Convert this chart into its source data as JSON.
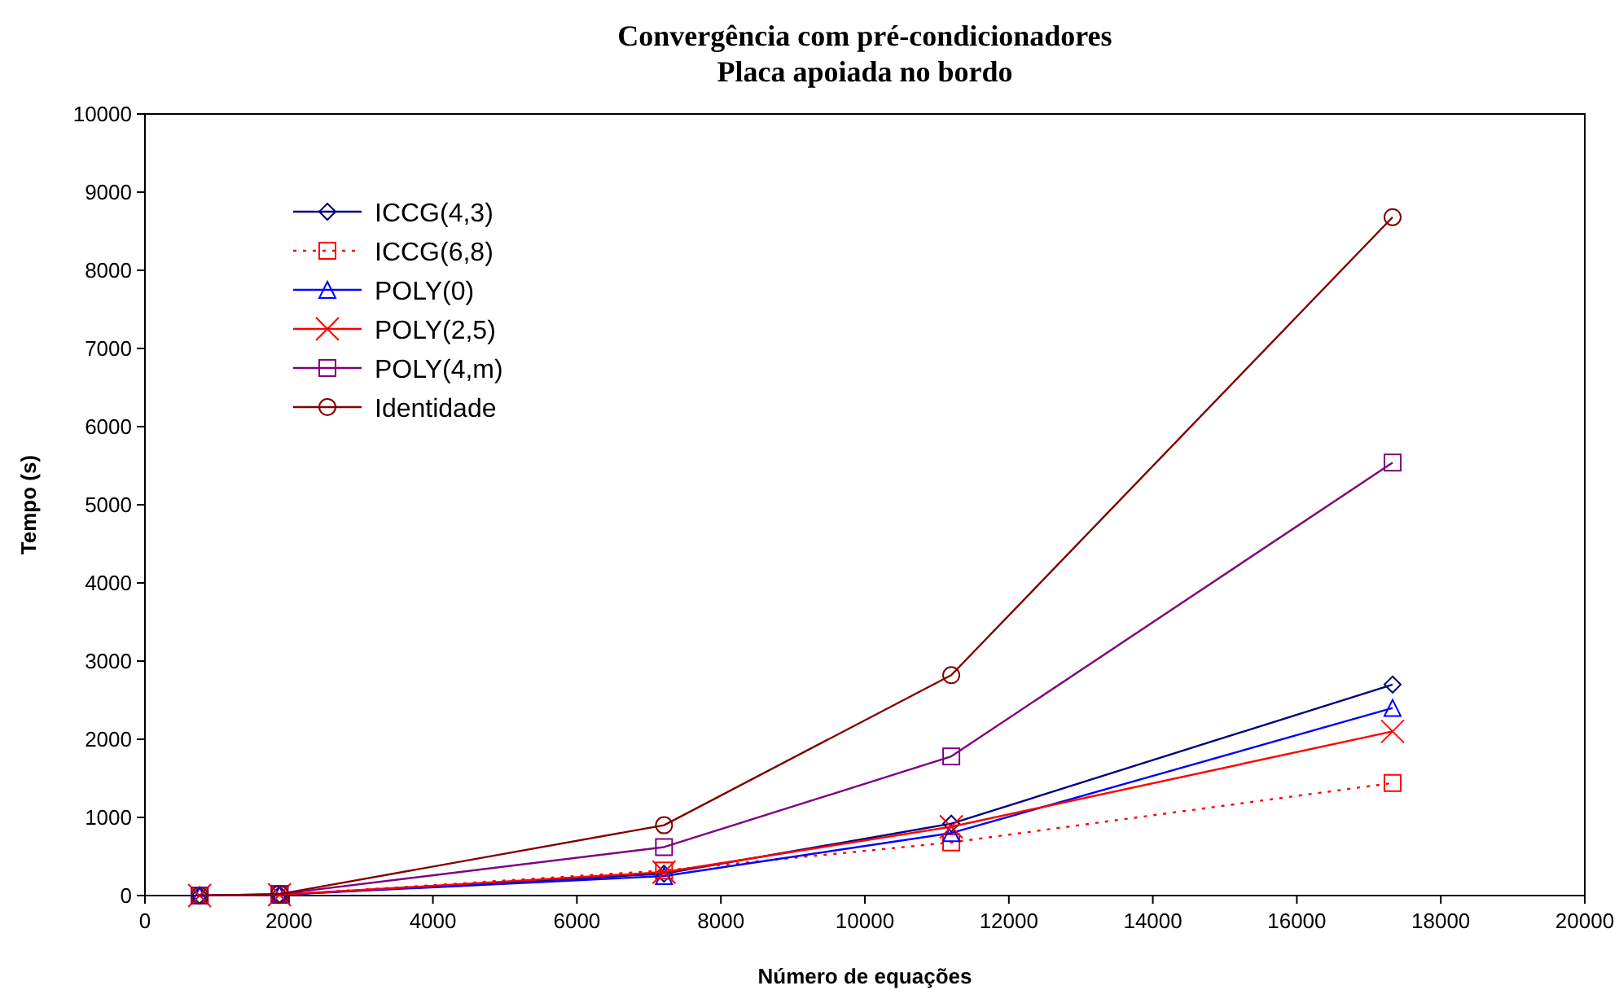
{
  "chart_data": {
    "type": "line",
    "title": "Convergência com pré-condicionadores",
    "subtitle": "Placa apoiada no bordo",
    "xlabel": "Número de equações",
    "ylabel": "Tempo (s)",
    "x": [
      760,
      1870,
      7210,
      11200,
      17330
    ],
    "xlim": [
      0,
      20000
    ],
    "xticks": [
      0,
      2000,
      4000,
      6000,
      8000,
      10000,
      12000,
      14000,
      16000,
      18000,
      20000
    ],
    "ylim": [
      0,
      10000
    ],
    "yticks": [
      0,
      1000,
      2000,
      3000,
      4000,
      5000,
      6000,
      7000,
      8000,
      9000,
      10000
    ],
    "grid": false,
    "legend": "top left",
    "series": [
      {
        "name": "ICCG(4,3)",
        "color": "#000080",
        "marker": "diamond",
        "line_style": "solid",
        "values": [
          0,
          10,
          280,
          920,
          2700
        ]
      },
      {
        "name": "ICCG(6,8)",
        "color": "#ff0000",
        "marker": "square",
        "line_style": "dotted",
        "values": [
          0,
          10,
          320,
          680,
          1440
        ]
      },
      {
        "name": "POLY(0)",
        "color": "#0000ff",
        "marker": "triangle",
        "line_style": "solid",
        "values": [
          0,
          10,
          250,
          800,
          2400
        ]
      },
      {
        "name": "POLY(2,5)",
        "color": "#ff0000",
        "marker": "cross",
        "line_style": "solid",
        "values": [
          0,
          10,
          300,
          880,
          2100
        ]
      },
      {
        "name": "POLY(4,m)",
        "color": "#800080",
        "marker": "square",
        "line_style": "solid",
        "values": [
          0,
          20,
          620,
          1780,
          5540
        ]
      },
      {
        "name": "Identidade",
        "color": "#800000",
        "marker": "circle",
        "line_style": "solid",
        "values": [
          0,
          20,
          900,
          2820,
          8680
        ]
      }
    ]
  }
}
